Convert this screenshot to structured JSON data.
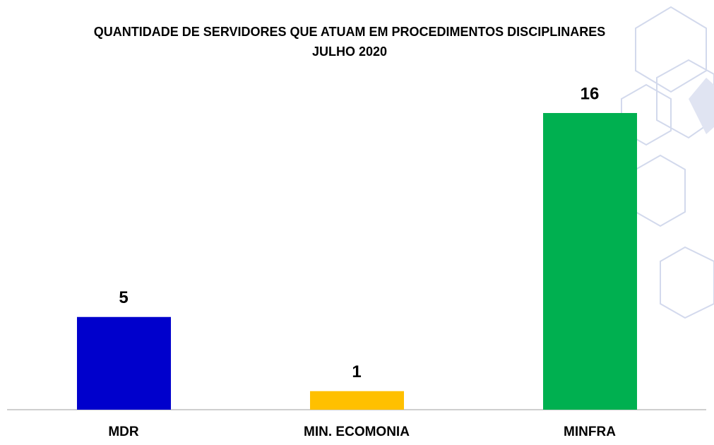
{
  "chart_data": {
    "type": "bar",
    "title": "QUANTIDADE DE SERVIDORES QUE ATUAM EM PROCEDIMENTOS DISCIPLINARES",
    "subtitle": "JULHO 2020",
    "categories": [
      "MDR",
      "MIN. ECOMONIA",
      "MINFRA"
    ],
    "values": [
      5,
      1,
      16
    ],
    "colors": [
      "#0000cc",
      "#ffc000",
      "#00b050"
    ]
  }
}
